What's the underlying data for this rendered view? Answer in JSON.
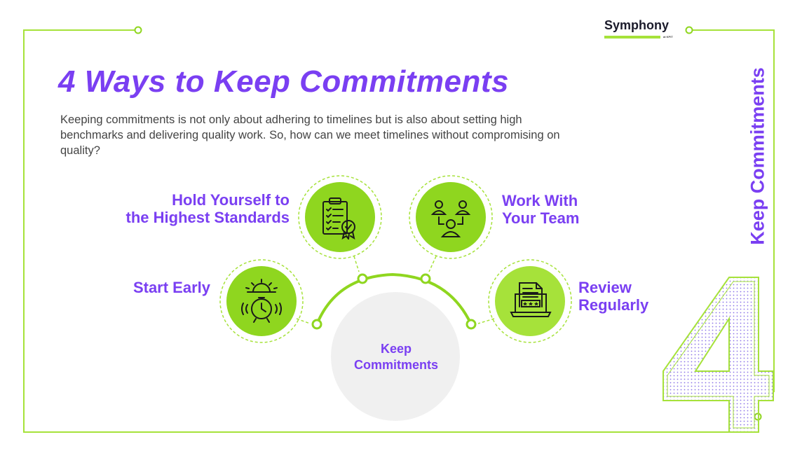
{
  "brand": {
    "name": "Symphony",
    "sub": "at KPIT"
  },
  "title": "4 Ways to Keep Commitments",
  "intro": "Keeping commitments is not only about adhering to timelines but is also about setting high benchmarks and delivering quality work. So, how can we meet timelines without compromising on quality?",
  "side_label": "Keep Commitments",
  "big_number": "4",
  "center": {
    "line1": "Keep",
    "line2": "Commitments"
  },
  "ways": [
    {
      "line1": "Start Early",
      "line2": "",
      "icon": "alarm-clock-sunrise-icon"
    },
    {
      "line1": "Hold Yourself to",
      "line2": "the Highest Standards",
      "icon": "checklist-badge-icon"
    },
    {
      "line1": "Work With",
      "line2": "Your Team",
      "icon": "team-icon"
    },
    {
      "line1": "Review",
      "line2": "Regularly",
      "icon": "laptop-document-rating-icon"
    }
  ],
  "colors": {
    "purple": "#7a3ff2",
    "green": "#8fd61f",
    "lightgreen": "#a6e23a",
    "gray": "#f0f0f0"
  }
}
